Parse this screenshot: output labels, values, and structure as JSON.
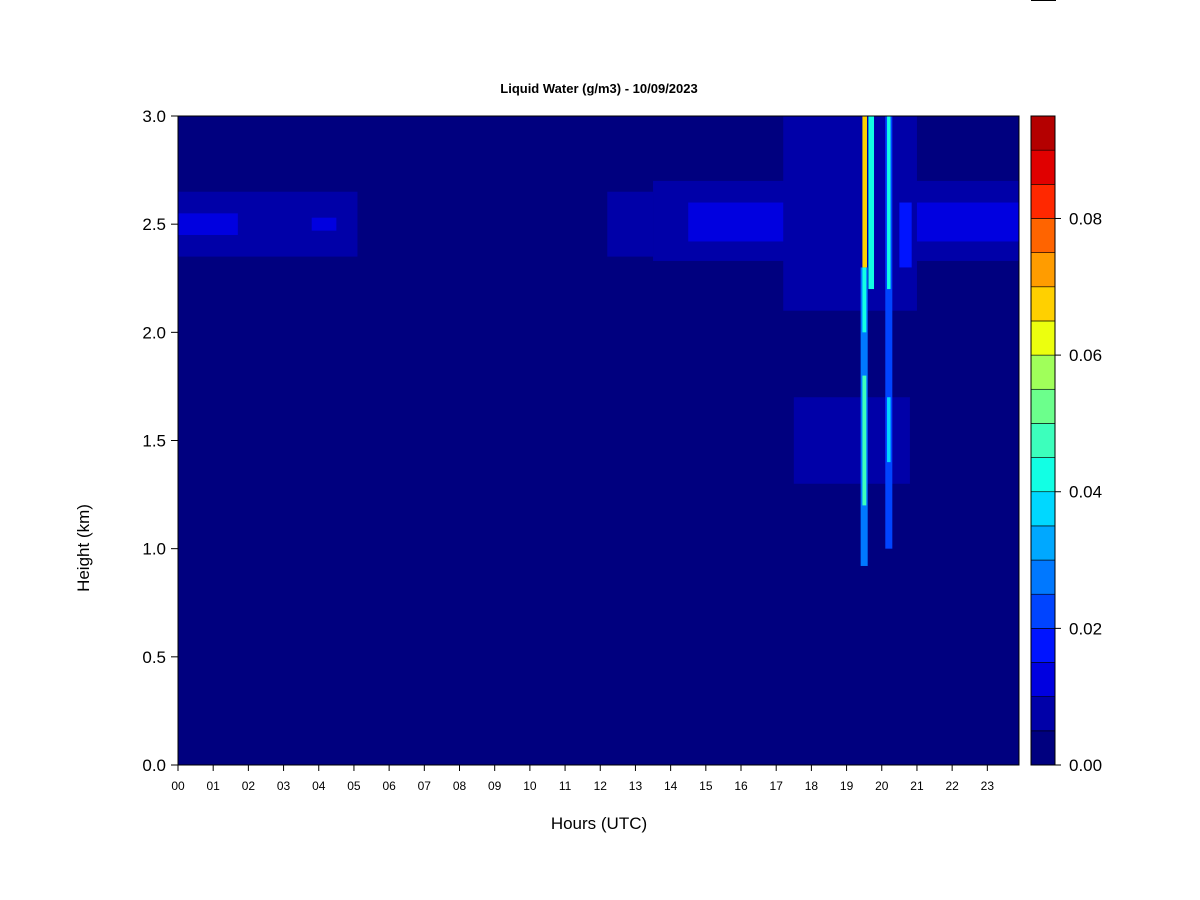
{
  "chart_data": {
    "type": "heatmap",
    "title": "Liquid Water (g/m3) - 10/09/2023",
    "xlabel": "Hours (UTC)",
    "ylabel": "Height (km)",
    "xlim": [
      0,
      23.9
    ],
    "ylim": [
      0,
      3.0
    ],
    "x_ticks": [
      0,
      1,
      2,
      3,
      4,
      5,
      6,
      7,
      8,
      9,
      10,
      11,
      12,
      13,
      14,
      15,
      16,
      17,
      18,
      19,
      20,
      21,
      22,
      23
    ],
    "x_tick_labels": [
      "00",
      "01",
      "02",
      "03",
      "04",
      "05",
      "06",
      "07",
      "08",
      "09",
      "10",
      "11",
      "12",
      "13",
      "14",
      "15",
      "16",
      "17",
      "18",
      "19",
      "20",
      "21",
      "22",
      "23"
    ],
    "y_ticks": [
      0,
      0.5,
      1.0,
      1.5,
      2.0,
      2.5,
      3.0
    ],
    "y_tick_labels": [
      "0.0",
      "0.5",
      "1.0",
      "1.5",
      "2.0",
      "2.5",
      "3.0"
    ],
    "colorbar": {
      "levels": [
        0.0,
        0.005,
        0.01,
        0.015,
        0.02,
        0.025,
        0.03,
        0.035,
        0.04,
        0.045,
        0.05,
        0.055,
        0.06,
        0.065,
        0.07,
        0.075,
        0.08,
        0.085,
        0.09,
        0.095
      ],
      "colors": [
        "#00007f",
        "#0000a8",
        "#0000e0",
        "#0014ff",
        "#0044ff",
        "#0078ff",
        "#00a8ff",
        "#00d8ff",
        "#12ffe4",
        "#3cffbc",
        "#6cff8c",
        "#a0ff5a",
        "#ecff0e",
        "#ffd000",
        "#ff9c00",
        "#ff6400",
        "#ff2800",
        "#e00000",
        "#b40000"
      ],
      "tick_values": [
        0.0,
        0.02,
        0.04,
        0.06,
        0.08
      ],
      "tick_labels": [
        "0.00",
        "0.02",
        "0.04",
        "0.06",
        "0.08"
      ]
    },
    "background_value": 0.0,
    "features": [
      {
        "x_range": [
          0.0,
          5.1
        ],
        "y_range": [
          2.35,
          2.65
        ],
        "value": 0.005
      },
      {
        "x_range": [
          0.0,
          1.7
        ],
        "y_range": [
          2.45,
          2.55
        ],
        "value": 0.01
      },
      {
        "x_range": [
          3.8,
          4.5
        ],
        "y_range": [
          2.47,
          2.53
        ],
        "value": 0.01
      },
      {
        "x_range": [
          12.2,
          13.5
        ],
        "y_range": [
          2.35,
          2.65
        ],
        "value": 0.005
      },
      {
        "x_range": [
          13.5,
          23.9
        ],
        "y_range": [
          2.33,
          2.7
        ],
        "value": 0.005
      },
      {
        "x_range": [
          14.5,
          23.9
        ],
        "y_range": [
          2.42,
          2.6
        ],
        "value": 0.01
      },
      {
        "x_range": [
          17.2,
          21.0
        ],
        "y_range": [
          2.1,
          3.0
        ],
        "value": 0.005
      },
      {
        "x_range": [
          17.5,
          20.8
        ],
        "y_range": [
          1.3,
          1.7
        ],
        "value": 0.005
      },
      {
        "x_range": [
          19.4,
          19.6
        ],
        "y_range": [
          0.92,
          2.3
        ],
        "value": 0.025
      },
      {
        "x_range": [
          19.45,
          19.56
        ],
        "y_range": [
          1.2,
          1.8
        ],
        "value": 0.045
      },
      {
        "x_range": [
          19.45,
          19.56
        ],
        "y_range": [
          2.0,
          2.3
        ],
        "value": 0.04
      },
      {
        "x_range": [
          19.45,
          19.58
        ],
        "y_range": [
          2.3,
          3.0
        ],
        "value": 0.065
      },
      {
        "x_range": [
          19.62,
          19.78
        ],
        "y_range": [
          2.2,
          3.0
        ],
        "value": 0.04
      },
      {
        "x_range": [
          20.1,
          20.3
        ],
        "y_range": [
          1.0,
          3.0
        ],
        "value": 0.02
      },
      {
        "x_range": [
          20.15,
          20.25
        ],
        "y_range": [
          1.4,
          1.7
        ],
        "value": 0.035
      },
      {
        "x_range": [
          20.15,
          20.25
        ],
        "y_range": [
          2.2,
          3.0
        ],
        "value": 0.04
      },
      {
        "x_range": [
          20.5,
          20.85
        ],
        "y_range": [
          2.3,
          2.6
        ],
        "value": 0.015
      }
    ]
  }
}
